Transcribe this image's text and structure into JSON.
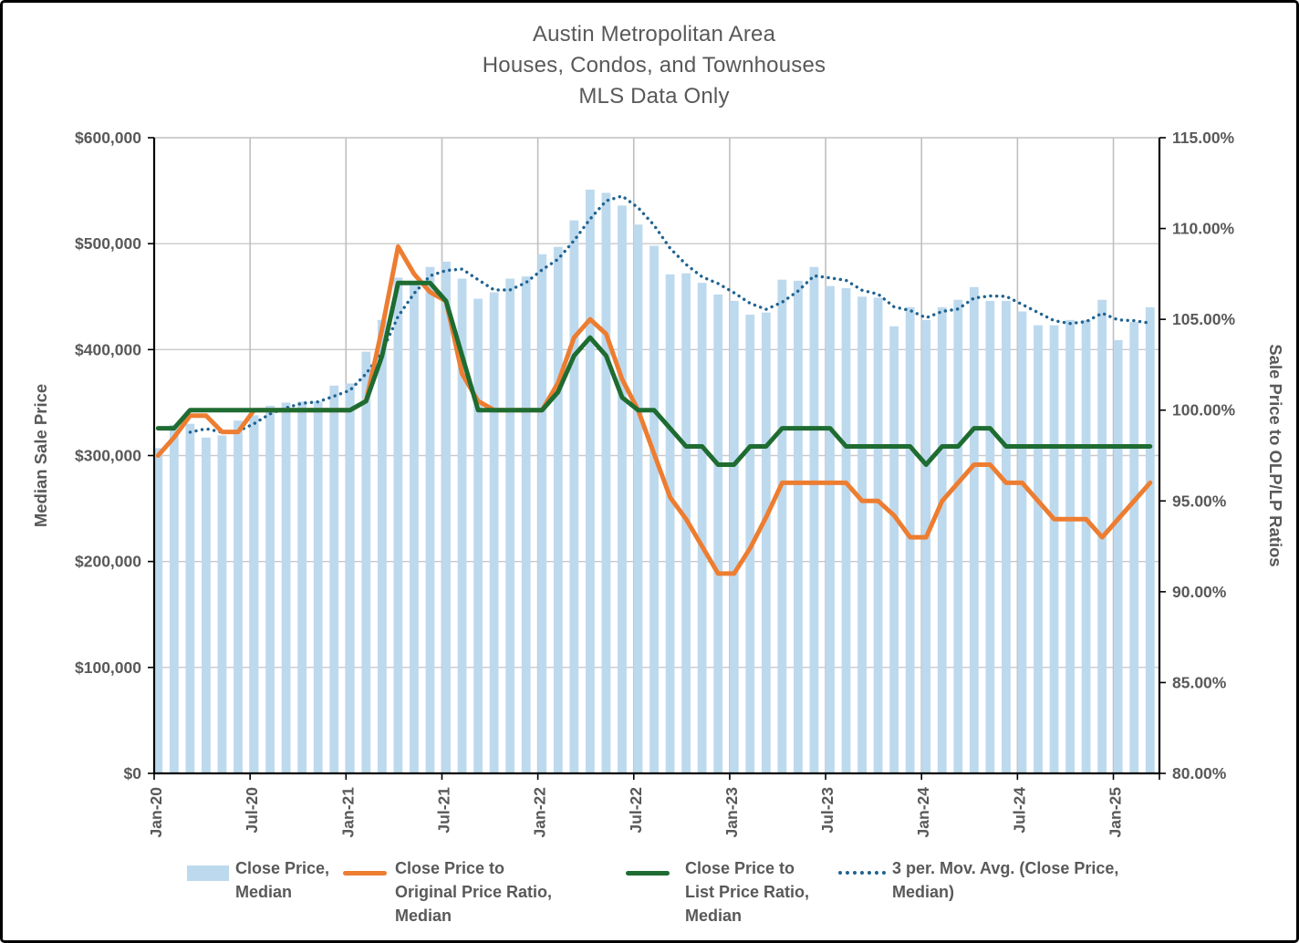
{
  "title": {
    "line1": "Austin Metropolitan Area",
    "line2": "Houses, Condos, and Townhouses",
    "line3": "MLS Data Only"
  },
  "legend": {
    "items": [
      {
        "label": "Close Price,\nMedian",
        "marker": "bar-swatch",
        "color": "#BDD9EE"
      },
      {
        "label": "Close Price to\nOriginal Price Ratio,\nMedian",
        "marker": "line-swatch",
        "color": "#ED7D31"
      },
      {
        "label": "Close Price to\nList Price Ratio,\nMedian",
        "marker": "line-swatch",
        "color": "#1E6C31"
      },
      {
        "label": "3 per. Mov. Avg. (Close Price,\nMedian)",
        "marker": "dotted-swatch",
        "color": "#1F6391"
      }
    ]
  },
  "chart_data": {
    "type": "bar",
    "subtype": "combo-bar-line-dual-axis",
    "title": "Austin Metropolitan Area\nHouses, Condos, and Townhouses\nMLS Data Only",
    "categories": [
      "Jan-20",
      "Feb-20",
      "Mar-20",
      "Apr-20",
      "May-20",
      "Jun-20",
      "Jul-20",
      "Aug-20",
      "Sep-20",
      "Oct-20",
      "Nov-20",
      "Dec-20",
      "Jan-21",
      "Feb-21",
      "Mar-21",
      "Apr-21",
      "May-21",
      "Jun-21",
      "Jul-21",
      "Aug-21",
      "Sep-21",
      "Oct-21",
      "Nov-21",
      "Dec-21",
      "Jan-22",
      "Feb-22",
      "Mar-22",
      "Apr-22",
      "May-22",
      "Jun-22",
      "Jul-22",
      "Aug-22",
      "Sep-22",
      "Oct-22",
      "Nov-22",
      "Dec-22",
      "Jan-23",
      "Feb-23",
      "Mar-23",
      "Apr-23",
      "May-23",
      "Jun-23",
      "Jul-23",
      "Aug-23",
      "Sep-23",
      "Oct-23",
      "Nov-23",
      "Dec-23",
      "Jan-24",
      "Feb-24",
      "Mar-24",
      "Apr-24",
      "May-24",
      "Jun-24",
      "Jul-24",
      "Aug-24",
      "Sep-24",
      "Oct-24",
      "Nov-24",
      "Dec-24",
      "Jan-25",
      "Feb-25",
      "Mar-25"
    ],
    "x_tick_labels": [
      "Jan-20",
      "Jul-20",
      "Jan-21",
      "Jul-21",
      "Jan-22",
      "Jul-22",
      "Jan-23",
      "Jul-23",
      "Jan-24",
      "Jul-24",
      "Jan-25"
    ],
    "series": [
      {
        "name": "Close Price, Median",
        "type": "bar",
        "axis": "left",
        "color": "#BDD9EE",
        "values": [
          307000,
          329000,
          330000,
          317000,
          319000,
          333000,
          338000,
          347000,
          350000,
          351000,
          351000,
          366000,
          368000,
          398000,
          428000,
          468000,
          463000,
          478000,
          483000,
          467000,
          448000,
          454000,
          467000,
          469000,
          490000,
          497000,
          522000,
          551000,
          548000,
          536000,
          518000,
          498000,
          471000,
          472000,
          463000,
          452000,
          446000,
          433000,
          435000,
          466000,
          465000,
          478000,
          460000,
          458000,
          450000,
          449000,
          422000,
          440000,
          428000,
          440000,
          447000,
          459000,
          446000,
          446000,
          436000,
          423000,
          423000,
          428000,
          428000,
          447000,
          409000,
          426000,
          440000
        ]
      },
      {
        "name": "Close Price to Original Price Ratio, Median",
        "type": "line",
        "axis": "right",
        "color": "#ED7D31",
        "values": [
          97.5,
          98.5,
          99.7,
          99.7,
          98.8,
          98.8,
          100,
          100,
          100,
          100,
          100,
          100,
          100,
          100.5,
          104.5,
          109,
          107.5,
          106.5,
          106,
          102,
          100.5,
          100,
          100,
          100,
          100,
          101.5,
          104,
          105,
          104.2,
          101.7,
          100,
          97.6,
          95.2,
          94,
          92.5,
          91,
          91,
          92.4,
          94.1,
          96,
          96,
          96,
          96,
          96,
          95,
          95,
          94.2,
          93,
          93,
          95,
          96,
          97,
          97,
          96,
          96,
          95,
          94,
          94,
          94,
          93,
          94,
          95,
          96
        ]
      },
      {
        "name": "Close Price to List Price Ratio, Median",
        "type": "line",
        "axis": "right",
        "color": "#1E6C31",
        "values": [
          99,
          99,
          100,
          100,
          100,
          100,
          100,
          100,
          100,
          100,
          100,
          100,
          100,
          100.5,
          103,
          107,
          107,
          107,
          106,
          103,
          100,
          100,
          100,
          100,
          100,
          101,
          103,
          104,
          103,
          100.7,
          100,
          100,
          99,
          98,
          98,
          97,
          97,
          98,
          98,
          99,
          99,
          99,
          99,
          98,
          98,
          98,
          98,
          98,
          97,
          98,
          98,
          99,
          99,
          98,
          98,
          98,
          98,
          98,
          98,
          98,
          98,
          98,
          98
        ]
      },
      {
        "name": "3 per. Mov. Avg. (Close Price, Median)",
        "type": "dotted-line",
        "axis": "left",
        "color": "#1F6391",
        "derived_from": "trailing 3-period moving average of Close Price, Median"
      }
    ],
    "y_left": {
      "title": "Median Sale Price",
      "min": 0,
      "max": 600000,
      "tick_labels": [
        "$0",
        "$100,000",
        "$200,000",
        "$300,000",
        "$400,000",
        "$500,000",
        "$600,000"
      ]
    },
    "y_right": {
      "title": "Sale Price to OLP/LP Ratios",
      "min": 80,
      "max": 115,
      "tick_labels": [
        "80.00%",
        "85.00%",
        "90.00%",
        "95.00%",
        "100.00%",
        "105.00%",
        "110.00%",
        "115.00%"
      ]
    },
    "grid": true,
    "legend_position": "bottom",
    "colors": {
      "text": "#595959",
      "gridline": "#C9C9C9",
      "axis_line": "#000000",
      "background": "#FFFFFF"
    }
  }
}
